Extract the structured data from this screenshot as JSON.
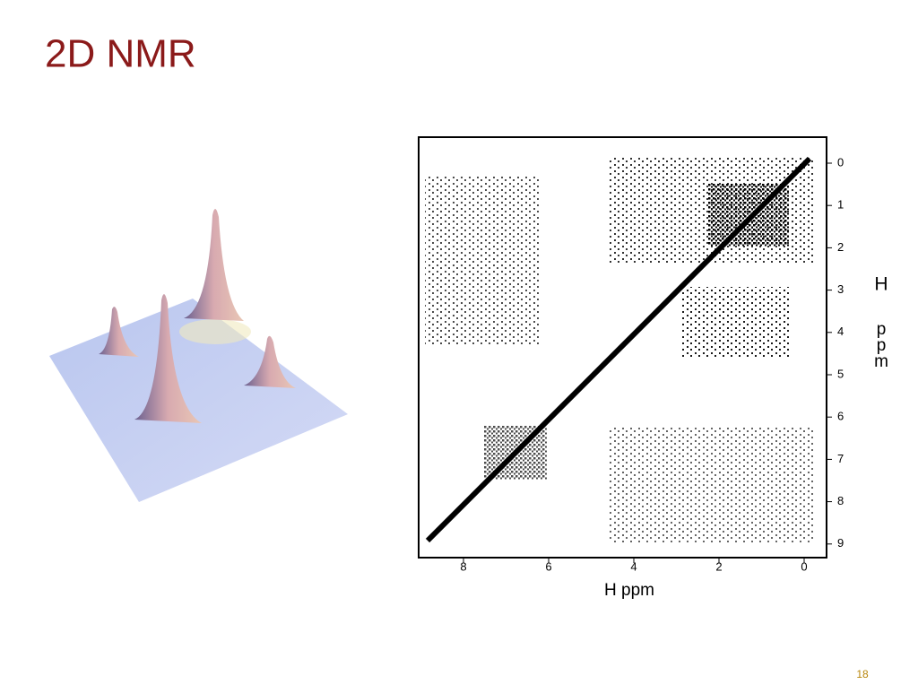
{
  "slide": {
    "title": "2D NMR",
    "page_number": "18"
  },
  "spectrum": {
    "xticks": [
      8,
      6,
      4,
      2,
      0
    ],
    "yticks": [
      0,
      1,
      2,
      3,
      4,
      5,
      6,
      7,
      8,
      9
    ],
    "x_label": "H ppm",
    "y_label": [
      "H",
      "p",
      "p",
      "m"
    ]
  }
}
